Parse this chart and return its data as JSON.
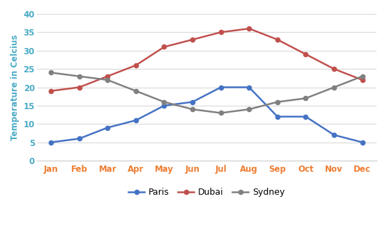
{
  "months": [
    "Jan",
    "Feb",
    "Mar",
    "Apr",
    "May",
    "Jun",
    "Jul",
    "Aug",
    "Sep",
    "Oct",
    "Nov",
    "Dec"
  ],
  "paris": [
    5,
    6,
    9,
    11,
    15,
    16,
    20,
    20,
    12,
    12,
    7,
    5
  ],
  "dubai": [
    19,
    20,
    23,
    26,
    31,
    33,
    35,
    36,
    33,
    29,
    25,
    22
  ],
  "sydney": [
    24,
    23,
    22,
    19,
    16,
    14,
    13,
    14,
    16,
    17,
    20,
    23
  ],
  "paris_color": "#4472C4",
  "dubai_color": "#C0504D",
  "sydney_color": "#808080",
  "xticklabel_color": "#ED7D31",
  "yticklabel_color": "#4BACC6",
  "ylabel": "Temperature in Celcius",
  "ylabel_color": "#4BACC6",
  "ylim": [
    0,
    40
  ],
  "yticks": [
    0,
    5,
    10,
    15,
    20,
    25,
    30,
    35,
    40
  ],
  "grid_color": "#D9D9D9",
  "background_color": "#FFFFFF",
  "legend_labels": [
    "Paris",
    "Dubai",
    "Sydney"
  ],
  "marker": "o",
  "linewidth": 1.8,
  "markersize": 4.5
}
